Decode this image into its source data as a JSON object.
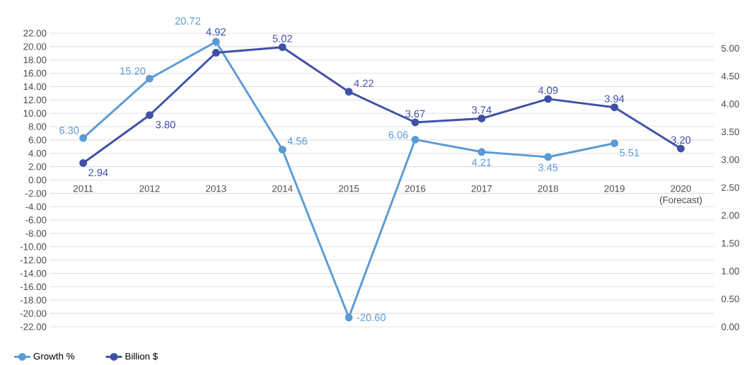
{
  "chart_data": {
    "type": "line",
    "categories": [
      "2011",
      "2012",
      "2013",
      "2014",
      "2015",
      "2016",
      "2017",
      "2018",
      "2019",
      "2020 (Forecast)"
    ],
    "series": [
      {
        "name": "Growth %",
        "color": "#5b9bd5",
        "values": [
          6.3,
          15.2,
          20.72,
          4.56,
          -20.6,
          6.06,
          4.21,
          3.45,
          5.51,
          null
        ],
        "value_labels": [
          "6.30",
          "15.20",
          "20.72",
          "4.56",
          "-20.60",
          "6.06",
          "4.21",
          "3.45",
          "5.51",
          null
        ]
      },
      {
        "name": "Billion $",
        "color": "#3f51a6",
        "axis": "y2",
        "values": [
          2.94,
          3.8,
          4.92,
          5.02,
          4.22,
          3.67,
          3.74,
          4.09,
          3.94,
          3.2
        ],
        "value_labels": [
          "2.94",
          "3.80",
          "4.92",
          "5.02",
          "4.22",
          "3.67",
          "3.74",
          "4.09",
          "3.94",
          "3.20"
        ]
      }
    ],
    "ylim": [
      -22,
      22
    ],
    "yticks": [
      {
        "value": -22,
        "label": "-22.00"
      },
      {
        "value": -20,
        "label": "-20.00"
      },
      {
        "value": -18,
        "label": "-18.00"
      },
      {
        "value": -16,
        "label": "-16.00"
      },
      {
        "value": -14,
        "label": "-14.00"
      },
      {
        "value": -12,
        "label": "-12.00"
      },
      {
        "value": -10,
        "label": "-10.00"
      },
      {
        "value": -8,
        "label": "-8.00"
      },
      {
        "value": -6,
        "label": "-6.00"
      },
      {
        "value": -4,
        "label": "-4.00"
      },
      {
        "value": -2,
        "label": "-2.00"
      },
      {
        "value": 0,
        "label": "0.00"
      },
      {
        "value": 2,
        "label": "2.00"
      },
      {
        "value": 4,
        "label": "4.00"
      },
      {
        "value": 6,
        "label": "6.00"
      },
      {
        "value": 8,
        "label": "8.00"
      },
      {
        "value": 10,
        "label": "10.00"
      },
      {
        "value": 12,
        "label": "12.00"
      },
      {
        "value": 14,
        "label": "14.00"
      },
      {
        "value": 16,
        "label": "16.00"
      },
      {
        "value": 18,
        "label": "18.00"
      },
      {
        "value": 20,
        "label": "20.00"
      },
      {
        "value": 22,
        "label": "22.00"
      }
    ],
    "y2lim": [
      0,
      5.27
    ],
    "y2ticks": [
      {
        "value": 0,
        "label": "0.00"
      },
      {
        "value": 0.5,
        "label": "0.50"
      },
      {
        "value": 1,
        "label": "1.00"
      },
      {
        "value": 1.5,
        "label": "1.50"
      },
      {
        "value": 2,
        "label": "2.00"
      },
      {
        "value": 2.5,
        "label": "2.50"
      },
      {
        "value": 3,
        "label": "3.00"
      },
      {
        "value": 3.5,
        "label": "3.50"
      },
      {
        "value": 4,
        "label": "4.00"
      },
      {
        "value": 4.5,
        "label": "4.50"
      },
      {
        "value": 5,
        "label": "5.00"
      }
    ],
    "grid": "y",
    "legend": "bottom left",
    "marker": "circle",
    "line_style": "solid"
  }
}
